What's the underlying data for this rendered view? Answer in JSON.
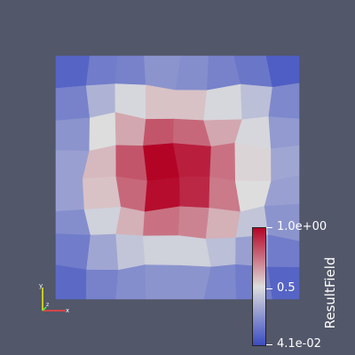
{
  "viewer": {
    "background": "#525769",
    "field_name": "ResultField",
    "colormap": [
      "#3b4cc0",
      "#dddddd",
      "#b40426"
    ]
  },
  "colorbar": {
    "title": "ResultField",
    "range": [
      0.041,
      1.0
    ],
    "ticks": [
      {
        "value": 1.0,
        "label": "1.0e+00"
      },
      {
        "value": 0.5,
        "label": "0.5"
      },
      {
        "value": 0.041,
        "label": "4.1e-02"
      }
    ]
  },
  "orientation_axes": {
    "x_color": "#ff4040",
    "y_color": "#f0f000",
    "z_color": "#40ff40",
    "x_label": "x",
    "y_label": "y",
    "z_label": "z"
  },
  "field_grid": {
    "rows": 8,
    "cols": 8,
    "values": [
      [
        0.12,
        0.2,
        0.22,
        0.28,
        0.26,
        0.22,
        0.18,
        0.1
      ],
      [
        0.22,
        0.38,
        0.5,
        0.58,
        0.58,
        0.5,
        0.42,
        0.24
      ],
      [
        0.28,
        0.52,
        0.64,
        0.82,
        0.78,
        0.64,
        0.5,
        0.3
      ],
      [
        0.32,
        0.6,
        0.82,
        1.0,
        0.94,
        0.76,
        0.54,
        0.34
      ],
      [
        0.32,
        0.58,
        0.78,
        0.98,
        0.92,
        0.74,
        0.52,
        0.32
      ],
      [
        0.26,
        0.48,
        0.62,
        0.76,
        0.72,
        0.62,
        0.44,
        0.28
      ],
      [
        0.2,
        0.34,
        0.44,
        0.48,
        0.48,
        0.42,
        0.32,
        0.2
      ],
      [
        0.14,
        0.22,
        0.26,
        0.28,
        0.28,
        0.24,
        0.2,
        0.12
      ]
    ]
  }
}
